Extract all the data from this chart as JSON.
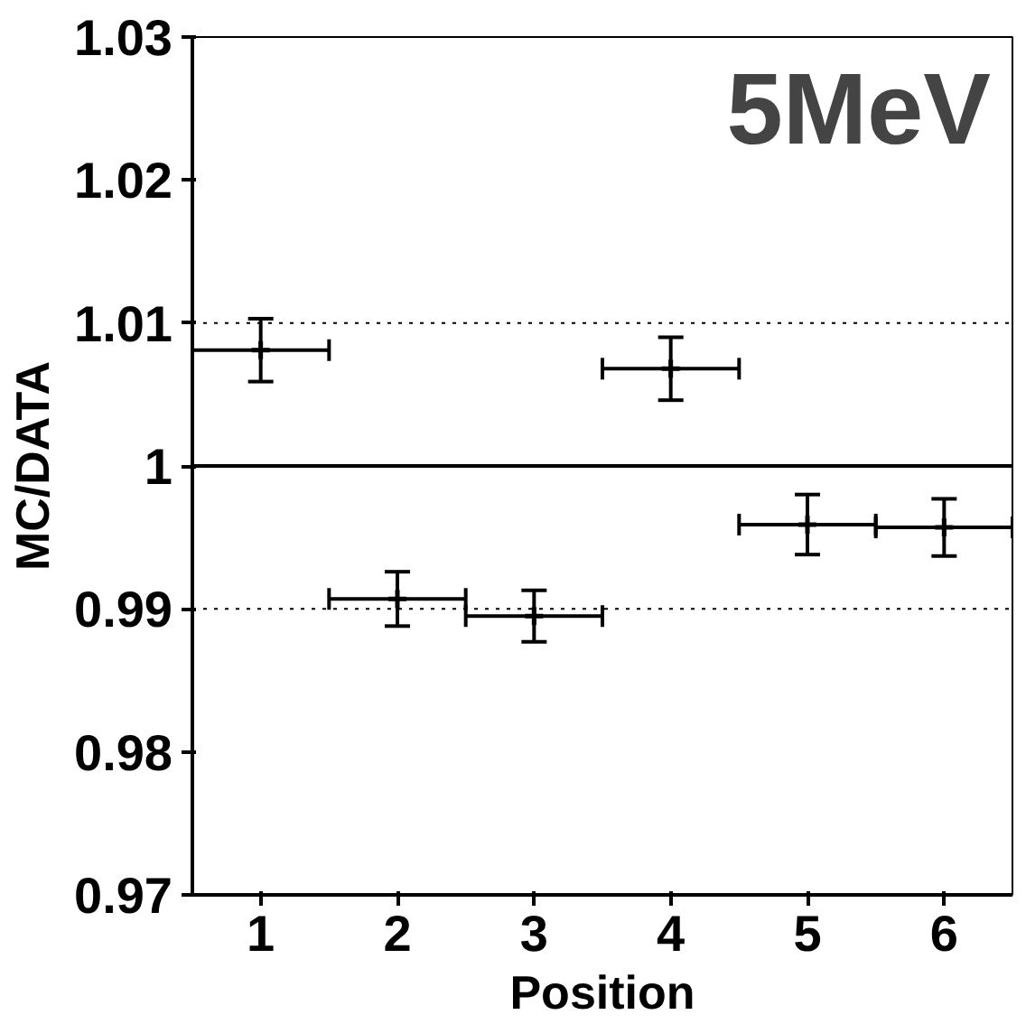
{
  "chart_data": {
    "type": "scatter",
    "xlabel": "Position",
    "ylabel": "MC/DATA",
    "annotations": [
      "5MeV"
    ],
    "x": [
      1,
      2,
      3,
      4,
      5,
      6
    ],
    "values": [
      1.0081,
      0.9907,
      0.9895,
      1.0068,
      0.9959,
      0.9957
    ],
    "errors": [
      0.0022,
      0.0019,
      0.0018,
      0.0022,
      0.0021,
      0.002
    ],
    "xerrors": [
      0.5,
      0.5,
      0.5,
      0.5,
      0.5,
      0.5
    ],
    "color": "#000000",
    "marker": "cross",
    "xlim": [
      0.5,
      6.5
    ],
    "xticks": [
      1,
      2,
      3,
      4,
      5,
      6
    ],
    "ylim": [
      0.97,
      1.03
    ],
    "yticks": [
      0.97,
      0.98,
      0.99,
      1,
      1.01,
      1.02,
      1.03
    ],
    "ref_lines": [
      {
        "axis": "y",
        "value": 1,
        "label": null,
        "line_style": "solid"
      },
      {
        "axis": "y",
        "value": 0.99,
        "label": null,
        "line_style": "dotted"
      },
      {
        "axis": "y",
        "value": 1.01,
        "label": null,
        "line_style": "dotted"
      }
    ],
    "grid": false
  }
}
